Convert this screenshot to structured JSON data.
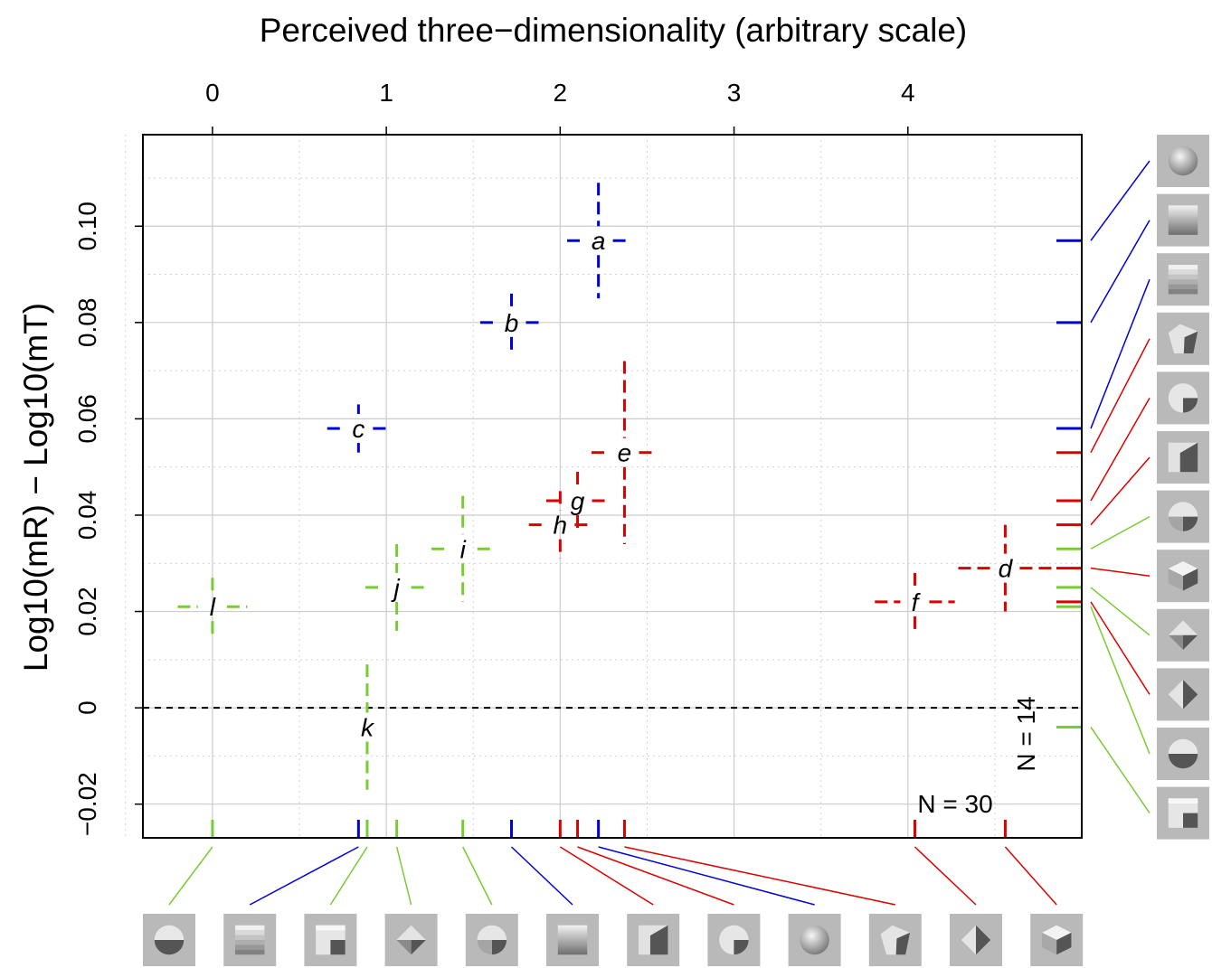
{
  "chart_data": {
    "type": "scatter",
    "title": "",
    "xlabel": "Perceived three−dimensionality (arbitrary scale)",
    "ylabel": "Log10(mR) − Log10(mT)",
    "xlim": [
      -0.4,
      5.0
    ],
    "ylim": [
      -0.027,
      0.119
    ],
    "xticks": [
      0,
      1,
      2,
      3,
      4
    ],
    "xtick_labels": [
      "0",
      "1",
      "2",
      "3",
      "4"
    ],
    "yticks": [
      -0.02,
      0,
      0.02,
      0.04,
      0.06,
      0.08,
      0.1
    ],
    "ytick_labels": [
      "−0.02",
      "0",
      "0.02",
      "0.04",
      "0.06",
      "0.08",
      "0.10"
    ],
    "grid": true,
    "reference_line_y": 0,
    "colors": {
      "blue": "#0000dd",
      "red": "#dd0000",
      "green": "#77cc33"
    },
    "points": [
      {
        "label": "a",
        "x": 2.22,
        "y": 0.097,
        "xerr": 0.18,
        "yerr": 0.012,
        "group": "blue"
      },
      {
        "label": "b",
        "x": 1.72,
        "y": 0.08,
        "xerr": 0.18,
        "yerr": 0.006,
        "group": "blue"
      },
      {
        "label": "c",
        "x": 0.84,
        "y": 0.058,
        "xerr": 0.18,
        "yerr": 0.005,
        "group": "blue"
      },
      {
        "label": "d",
        "x": 4.56,
        "y": 0.029,
        "xerr": 0.27,
        "yerr": 0.009,
        "group": "red"
      },
      {
        "label": "e",
        "x": 2.37,
        "y": 0.053,
        "xerr": 0.19,
        "yerr": 0.019,
        "group": "red"
      },
      {
        "label": "f",
        "x": 4.04,
        "y": 0.022,
        "xerr": 0.23,
        "yerr": 0.006,
        "group": "red"
      },
      {
        "label": "g",
        "x": 2.1,
        "y": 0.043,
        "xerr": 0.18,
        "yerr": 0.006,
        "group": "red"
      },
      {
        "label": "h",
        "x": 2.0,
        "y": 0.038,
        "xerr": 0.18,
        "yerr": 0.007,
        "group": "red"
      },
      {
        "label": "i",
        "x": 1.44,
        "y": 0.033,
        "xerr": 0.18,
        "yerr": 0.011,
        "group": "green"
      },
      {
        "label": "j",
        "x": 1.06,
        "y": 0.025,
        "xerr": 0.18,
        "yerr": 0.009,
        "group": "green"
      },
      {
        "label": "k",
        "x": 0.89,
        "y": -0.004,
        "xerr": 0.0,
        "yerr": 0.013,
        "group": "green"
      },
      {
        "label": "l",
        "x": 0.0,
        "y": 0.021,
        "xerr": 0.2,
        "yerr": 0.006,
        "group": "green"
      }
    ],
    "annotations": [
      "N = 30",
      "N = 14"
    ],
    "bottom_icons": [
      {
        "icon": "half-disc-icon",
        "x": 0.0,
        "group": "green"
      },
      {
        "icon": "striped-square-icon",
        "x": 0.84,
        "group": "blue"
      },
      {
        "icon": "folded-square-icon",
        "x": 0.89,
        "group": "green"
      },
      {
        "icon": "diamond-quad-icon",
        "x": 1.06,
        "group": "green"
      },
      {
        "icon": "sphere-wedge-icon",
        "x": 1.44,
        "group": "green"
      },
      {
        "icon": "shaded-square-icon",
        "x": 1.72,
        "group": "blue"
      },
      {
        "icon": "truncated-cube-icon",
        "x": 2.0,
        "group": "red"
      },
      {
        "icon": "sphere-cut-icon",
        "x": 2.1,
        "group": "red"
      },
      {
        "icon": "sphere-icon",
        "x": 2.22,
        "group": "blue"
      },
      {
        "icon": "pentagon-solid-icon",
        "x": 2.37,
        "group": "red"
      },
      {
        "icon": "diamond-solid-icon",
        "x": 4.04,
        "group": "red"
      },
      {
        "icon": "cube-icon",
        "x": 4.56,
        "group": "red"
      }
    ],
    "right_icons": [
      {
        "icon": "sphere-icon",
        "y": 0.097,
        "group": "blue"
      },
      {
        "icon": "shaded-square-icon",
        "y": 0.08,
        "group": "blue"
      },
      {
        "icon": "striped-square-icon",
        "y": 0.058,
        "group": "blue"
      },
      {
        "icon": "pentagon-solid-icon",
        "y": 0.053,
        "group": "red"
      },
      {
        "icon": "sphere-cut-icon",
        "y": 0.043,
        "group": "red"
      },
      {
        "icon": "truncated-cube-icon",
        "y": 0.038,
        "group": "red"
      },
      {
        "icon": "sphere-wedge-icon",
        "y": 0.033,
        "group": "green"
      },
      {
        "icon": "cube-icon",
        "y": 0.029,
        "group": "red"
      },
      {
        "icon": "diamond-quad-icon",
        "y": 0.025,
        "group": "green"
      },
      {
        "icon": "diamond-solid-icon",
        "y": 0.022,
        "group": "red"
      },
      {
        "icon": "half-disc-icon",
        "y": 0.021,
        "group": "green"
      },
      {
        "icon": "folded-square-icon",
        "y": -0.004,
        "group": "green"
      }
    ]
  }
}
